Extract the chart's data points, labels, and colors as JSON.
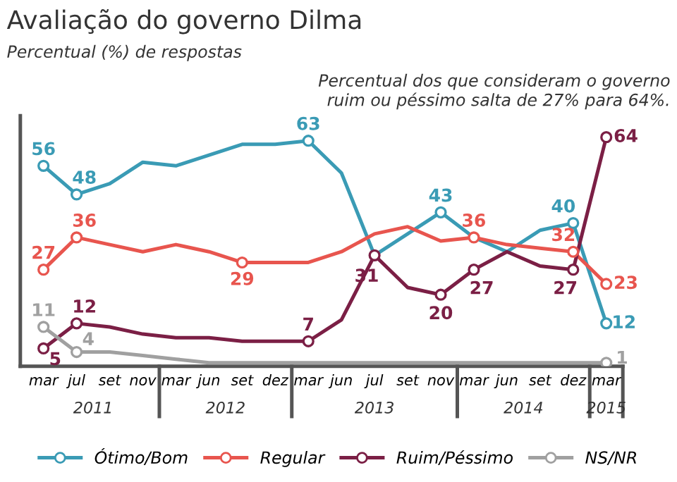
{
  "chart_data": {
    "type": "line",
    "title": "Avaliação do governo Dilma",
    "subtitle": "Percentual (%) de respostas",
    "annotations": [
      "Percentual dos que consideram o governo ruim ou péssimo salta de 27% para 64%.",
      "2011",
      "2012",
      "2013",
      "2014",
      "2015"
    ],
    "categories": [
      "mar",
      "jul",
      "set",
      "nov",
      "mar",
      "jun",
      "set",
      "dez",
      "mar",
      "jun",
      "jul",
      "set",
      "nov",
      "mar",
      "jun",
      "set",
      "dez",
      "mar"
    ],
    "ylim": [
      0,
      70
    ],
    "tick_labels": "x",
    "grid": false,
    "legend": "bottom",
    "line_style": "solid",
    "series": [
      {
        "name": "Ótimo/Bom",
        "color": "#3a9bb5",
        "values": [
          56,
          48,
          51,
          57,
          56,
          59,
          62,
          62,
          63,
          54,
          31,
          37,
          43,
          36,
          32,
          38,
          40,
          12
        ],
        "value_labels": [
          "56",
          "48",
          null,
          null,
          null,
          null,
          null,
          null,
          "63",
          null,
          null,
          null,
          "43",
          null,
          null,
          null,
          "40",
          "12"
        ]
      },
      {
        "name": "Regular",
        "color": "#e8554e",
        "values": [
          27,
          36,
          34,
          32,
          34,
          32,
          29,
          29,
          29,
          32,
          37,
          39,
          35,
          36,
          34,
          33,
          32,
          23
        ],
        "value_labels": [
          "27",
          "36",
          null,
          null,
          null,
          null,
          "29",
          null,
          null,
          null,
          null,
          null,
          null,
          "36",
          null,
          null,
          "32",
          "23"
        ]
      },
      {
        "name": "Ruim/Péssimo",
        "color": "#7b1f45",
        "values": [
          5,
          12,
          11,
          9,
          8,
          8,
          7,
          7,
          7,
          13,
          31,
          22,
          20,
          27,
          32,
          28,
          27,
          64
        ],
        "value_labels": [
          "5",
          "12",
          null,
          null,
          null,
          null,
          null,
          null,
          "7",
          null,
          "31",
          null,
          "20",
          "27",
          null,
          null,
          "27",
          "64"
        ]
      },
      {
        "name": "NS/NR",
        "color": "#a0a0a0",
        "values": [
          11,
          4,
          4,
          3,
          2,
          1,
          1,
          1,
          1,
          1,
          1,
          1,
          1,
          1,
          1,
          1,
          1,
          1
        ],
        "value_labels": [
          "11",
          "4",
          null,
          null,
          null,
          null,
          null,
          null,
          null,
          null,
          null,
          null,
          null,
          null,
          null,
          null,
          null,
          "1"
        ]
      }
    ]
  }
}
